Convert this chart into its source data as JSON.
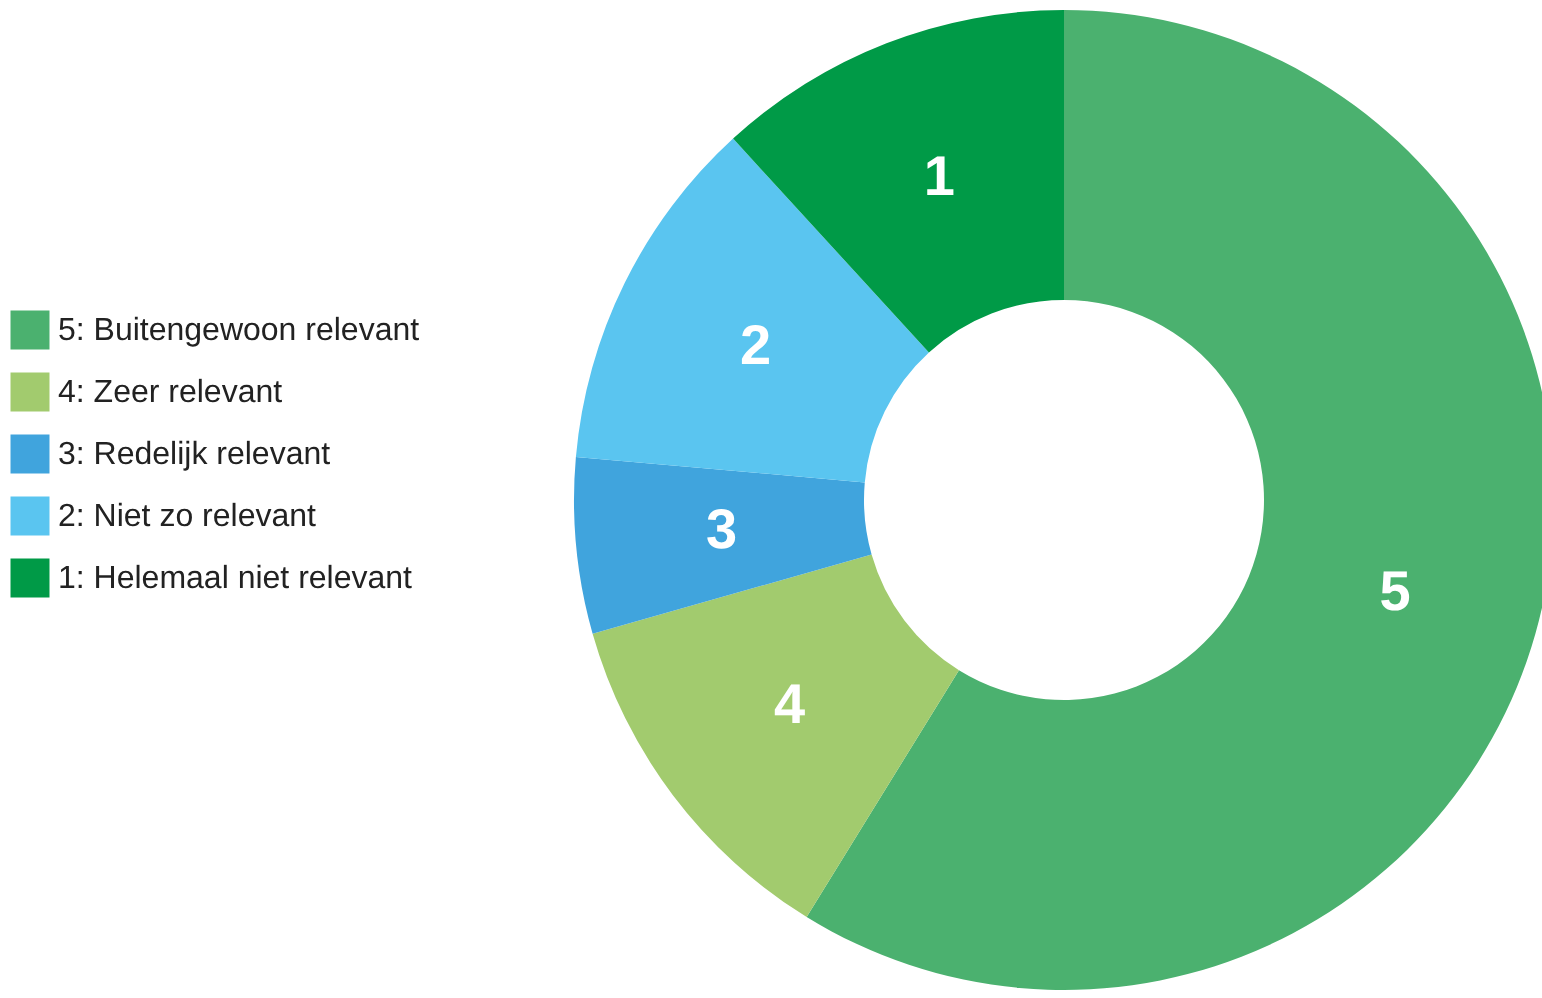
{
  "chart_data": {
    "type": "donut",
    "categories": [
      "5: Buitengewoon relevant",
      "4: Zeer relevant",
      "3: Redelijk relevant",
      "2: Niet zo relevant",
      "1: Helemaal niet relevant"
    ],
    "values": [
      58.8,
      11.8,
      5.8,
      11.8,
      11.8
    ],
    "colors": [
      "#4bb16f",
      "#a2cb6e",
      "#40a4dd",
      "#5ac5f0",
      "#009a47"
    ],
    "annotations": [
      "5",
      "4",
      "3",
      "2",
      "1"
    ],
    "legend": "left"
  }
}
